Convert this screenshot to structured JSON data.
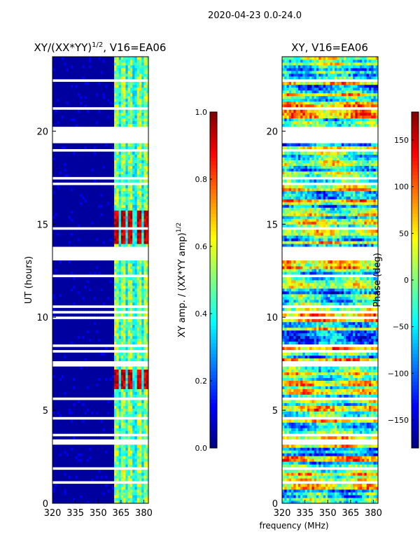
{
  "figure": {
    "suptitle": "2020-04-23 0.0-24.0",
    "xlabel_shared": "frequency (MHz)"
  },
  "colormap": "jet",
  "chart_data": [
    {
      "type": "heatmap",
      "title": "XY/(XX*YY)^1/2, V16=EA06",
      "title_main": "XY/(XX*YY)",
      "title_sup": "1/2",
      "title_rest": ", V16=EA06",
      "xlabel": "frequency (MHz)",
      "ylabel": "UT (hours)",
      "xlim": [
        320,
        383
      ],
      "ylim": [
        0,
        24
      ],
      "xticks": [
        320,
        335,
        350,
        365,
        380
      ],
      "yticks": [
        0,
        5,
        10,
        15,
        20
      ],
      "x_tick_labels": [
        "320",
        "335",
        "350",
        "365",
        "380"
      ],
      "y_tick_labels": [
        "0",
        "5",
        "10",
        "15",
        "20"
      ],
      "colorbar": {
        "label": "XY amp. / (XX*YY amp)^1/2",
        "label_main": "XY amp. / (XX*YY amp)",
        "label_sup": "1/2",
        "range": [
          0,
          1
        ],
        "ticks": [
          0.0,
          0.2,
          0.4,
          0.6,
          0.8,
          1.0
        ],
        "tick_labels": [
          "0.0",
          "0.2",
          "0.4",
          "0.6",
          "0.8",
          "1.0"
        ]
      },
      "low_band_mhz": [
        320,
        361
      ],
      "low_band_value": 0.03,
      "high_band_mhz": [
        361,
        383
      ],
      "bright_channels_mhz": [
        361.5,
        366.5,
        371.5,
        376.5,
        381
      ],
      "bright_channel_value": 0.55,
      "strong_rfi_periods_ut": [
        [
          6.2,
          7.2
        ],
        [
          14.0,
          15.8
        ]
      ],
      "strong_rfi_value": 0.85,
      "data_gaps_ut": [
        [
          13.1,
          13.8
        ],
        [
          19.3,
          19.9
        ],
        [
          7.4,
          7.6
        ],
        [
          4.5,
          4.7
        ],
        [
          3.2,
          3.4
        ],
        [
          1.8,
          1.9
        ],
        [
          1.1,
          1.2
        ],
        [
          19.95,
          20.2
        ]
      ]
    },
    {
      "type": "heatmap",
      "title": "XY, V16=EA06",
      "xlabel": "frequency (MHz)",
      "ylabel": "",
      "xlim": [
        320,
        383
      ],
      "ylim": [
        0,
        24
      ],
      "xticks": [
        320,
        335,
        350,
        365,
        380
      ],
      "yticks": [
        0,
        5,
        10,
        15,
        20
      ],
      "x_tick_labels": [
        "320",
        "335",
        "350",
        "365",
        "380"
      ],
      "y_tick_labels": [
        "0",
        "5",
        "10",
        "15",
        "20"
      ],
      "colorbar": {
        "label": "Phase (deg)",
        "range": [
          -180,
          180
        ],
        "ticks": [
          -150,
          -100,
          -50,
          0,
          50,
          100,
          150
        ],
        "tick_labels": [
          "−150",
          "−100",
          "−50",
          "0",
          "50",
          "100",
          "150"
        ]
      },
      "phase_range_deg": [
        -180,
        180
      ],
      "data_gaps_ut": [
        [
          13.1,
          13.8
        ],
        [
          19.3,
          19.9
        ],
        [
          7.4,
          7.6
        ],
        [
          4.5,
          4.7
        ],
        [
          3.2,
          3.4
        ],
        [
          1.8,
          1.9
        ],
        [
          1.1,
          1.2
        ],
        [
          19.95,
          20.2
        ]
      ]
    }
  ]
}
